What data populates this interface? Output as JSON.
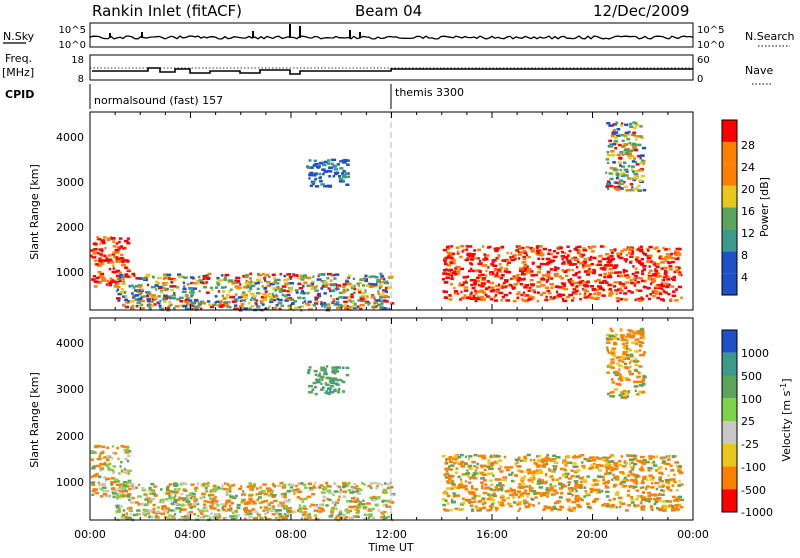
{
  "header": {
    "station": "Rankin Inlet (fitACF)",
    "beam": "Beam 04",
    "date": "12/Dec/2009"
  },
  "noise_panel": {
    "left_label": "N.Sky",
    "left_ticks": [
      "10^5",
      "10^0"
    ],
    "right_ticks": [
      "10^5",
      "10^0"
    ],
    "right_label": "N.Search"
  },
  "freq_panel": {
    "left_label_1": "Freq.",
    "left_label_2": "[MHz]",
    "left_ticks": [
      "18",
      "8"
    ],
    "right_ticks": [
      "60",
      "0"
    ],
    "right_label": "Nave"
  },
  "cpid": {
    "label": "CPID",
    "segments": [
      {
        "name": "normalsound (fast) 157",
        "start_hour": 0
      },
      {
        "name": "themis 3300",
        "start_hour": 12
      }
    ]
  },
  "colors": {
    "red": "#ff0000",
    "orange": "#ff7f00",
    "gold": "#e8c81a",
    "lightgreen": "#7fd24b",
    "green": "#5aa55a",
    "teal": "#3c9a8a",
    "blue": "#1e50c8",
    "grey": "#c8c8c8"
  },
  "chart_data": [
    {
      "type": "heatmap",
      "panel": "power",
      "ylabel": "Slant Range [km]",
      "xlabel": "",
      "y_ticks": [
        "1000",
        "2000",
        "3000",
        "4000"
      ],
      "xlim": [
        "00:00",
        "24:00"
      ],
      "ylim": [
        180,
        4500
      ],
      "colorbar": {
        "label": "Power [dB]",
        "ticks": [
          "4",
          "8",
          "12",
          "16",
          "20",
          "24",
          "28"
        ],
        "range": [
          0,
          32
        ]
      },
      "regions": [
        {
          "start_hour": 0.0,
          "end_hour": 1.5,
          "min_km": 700,
          "max_km": 1800,
          "level": "high"
        },
        {
          "start_hour": 1.0,
          "end_hour": 12.0,
          "min_km": 200,
          "max_km": 1000,
          "level": "mixed"
        },
        {
          "start_hour": 8.6,
          "end_hour": 10.2,
          "min_km": 2900,
          "max_km": 3500,
          "level": "low"
        },
        {
          "start_hour": 14.0,
          "end_hour": 23.5,
          "min_km": 400,
          "max_km": 1600,
          "level": "high"
        },
        {
          "start_hour": 20.5,
          "end_hour": 22.0,
          "min_km": 2800,
          "max_km": 4300,
          "level": "mixed"
        }
      ]
    },
    {
      "type": "heatmap",
      "panel": "velocity",
      "ylabel": "Slant Range [km]",
      "xlabel": "Time UT",
      "y_ticks": [
        "1000",
        "2000",
        "3000",
        "4000"
      ],
      "x_ticks": [
        "00:00",
        "04:00",
        "08:00",
        "12:00",
        "16:00",
        "20:00",
        "00:00"
      ],
      "xlim": [
        "00:00",
        "24:00"
      ],
      "ylim": [
        180,
        4500
      ],
      "colorbar": {
        "label": "Velocity [m s^-1]",
        "ticks": [
          "1000",
          "500",
          "100",
          "25",
          "-25",
          "-100",
          "-500",
          "-1000"
        ]
      },
      "regions": [
        {
          "start_hour": 0.0,
          "end_hour": 1.5,
          "min_km": 700,
          "max_km": 1800,
          "level": "mixed"
        },
        {
          "start_hour": 1.0,
          "end_hour": 12.0,
          "min_km": 200,
          "max_km": 1000,
          "level": "mixed"
        },
        {
          "start_hour": 8.6,
          "end_hour": 10.2,
          "min_km": 2900,
          "max_km": 3500,
          "level": "positive"
        },
        {
          "start_hour": 14.0,
          "end_hour": 23.5,
          "min_km": 400,
          "max_km": 1600,
          "level": "negative"
        },
        {
          "start_hour": 20.5,
          "end_hour": 22.0,
          "min_km": 2800,
          "max_km": 4300,
          "level": "negative"
        }
      ]
    }
  ]
}
